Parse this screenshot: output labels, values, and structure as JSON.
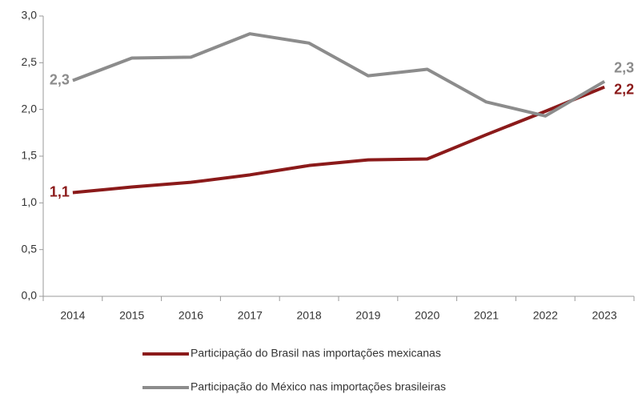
{
  "chart_data": {
    "type": "line",
    "categories": [
      "2014",
      "2015",
      "2016",
      "2017",
      "2018",
      "2019",
      "2020",
      "2021",
      "2022",
      "2023"
    ],
    "series": [
      {
        "name": "Participação do Brasil nas importações mexicanas",
        "color": "#8b1a1a",
        "values": [
          1.11,
          1.17,
          1.22,
          1.3,
          1.4,
          1.46,
          1.47,
          1.73,
          1.98,
          2.24
        ],
        "value_labels": [
          "1,1",
          null,
          null,
          null,
          null,
          null,
          null,
          null,
          null,
          "2,2"
        ]
      },
      {
        "name": "Participação do México nas importações brasileiras",
        "color": "#8c8c8c",
        "values": [
          2.31,
          2.55,
          2.56,
          2.81,
          2.71,
          2.36,
          2.43,
          2.08,
          1.93,
          2.3
        ],
        "value_labels": [
          "2,3",
          null,
          null,
          null,
          null,
          null,
          null,
          null,
          null,
          "2,3"
        ]
      }
    ],
    "ylim": [
      0,
      3
    ],
    "yticks": [
      {
        "value": 0,
        "label": "0,0"
      },
      {
        "value": 0.5,
        "label": "0,5"
      },
      {
        "value": 1,
        "label": "1,0"
      },
      {
        "value": 1.5,
        "label": "1,5"
      },
      {
        "value": 2,
        "label": "2,0"
      },
      {
        "value": 2.5,
        "label": "2,5"
      },
      {
        "value": 3,
        "label": "3,0"
      }
    ],
    "grid": false
  }
}
